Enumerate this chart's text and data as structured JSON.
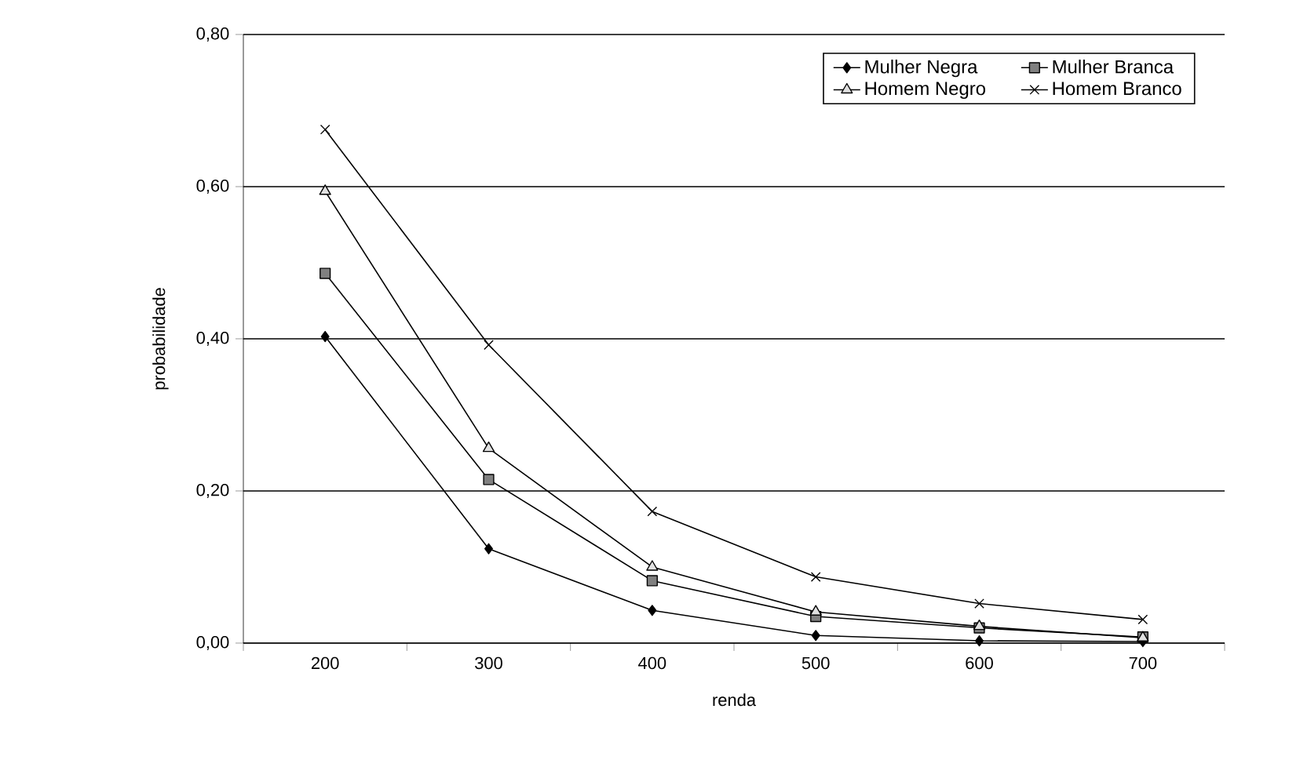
{
  "chart_data": {
    "type": "line",
    "xlabel": "renda",
    "ylabel": "probabilidade",
    "categories": [
      "200",
      "300",
      "400",
      "500",
      "600",
      "700"
    ],
    "series": [
      {
        "name": "Mulher Negra",
        "color": "#000000",
        "marker": "diamond",
        "values": [
          0.403,
          0.124,
          0.043,
          0.01,
          0.003,
          0.002
        ]
      },
      {
        "name": "Mulher Branca",
        "color": "#000000",
        "marker": "square",
        "values": [
          0.486,
          0.215,
          0.082,
          0.035,
          0.02,
          0.008
        ]
      },
      {
        "name": "Homem Negro",
        "color": "#000000",
        "marker": "triangle",
        "values": [
          0.594,
          0.256,
          0.1,
          0.041,
          0.022,
          0.007
        ]
      },
      {
        "name": "Homem Branco",
        "color": "#000000",
        "marker": "cross",
        "values": [
          0.675,
          0.392,
          0.173,
          0.087,
          0.052,
          0.031
        ]
      }
    ],
    "ylim": [
      0,
      0.8
    ],
    "yticks": [
      {
        "value": 0,
        "label": "0,00"
      },
      {
        "value": 0.2,
        "label": "0,20"
      },
      {
        "value": 0.4,
        "label": "0,40"
      },
      {
        "value": 0.6,
        "label": "0,60"
      },
      {
        "value": 0.8,
        "label": "0,80"
      }
    ],
    "grid": "y",
    "legend": "top right",
    "line_style": "solid"
  }
}
